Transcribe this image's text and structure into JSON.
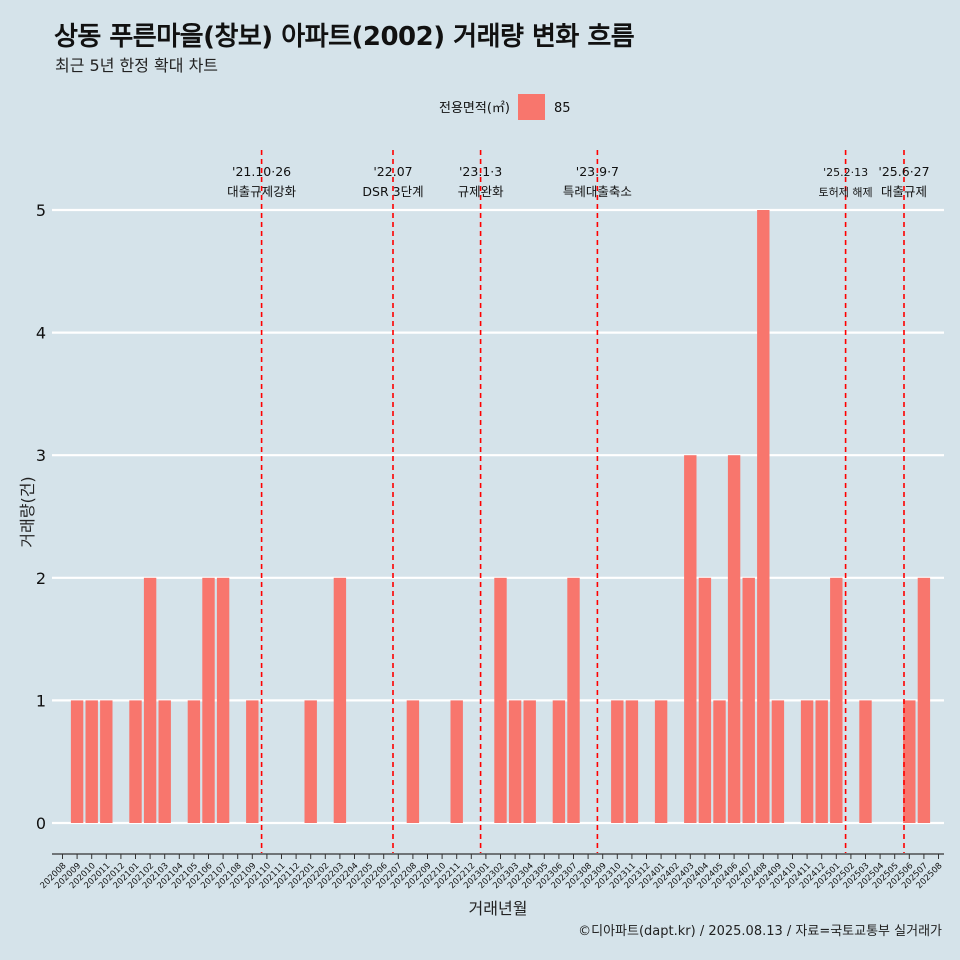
{
  "header": {
    "title": "상동 푸른마을(창보) 아파트(2002) 거래량 변화 흐름",
    "subtitle": "최근 5년 한정 확대 차트"
  },
  "footer": {
    "source": "©디아파트(dapt.kr) / 2025.08.13 / 자료=국토교통부 실거래가"
  },
  "colors": {
    "background": "#d5e3ea",
    "bar": "#f8766d",
    "event_line": "#ff0000",
    "grid": "#ffffff"
  },
  "chart_data": {
    "type": "bar",
    "title": "상동 푸른마을(창보) 아파트(2002) 거래량 변화 흐름",
    "xlabel": "거래년월",
    "ylabel": "거래량(건)",
    "ylim": [
      0,
      5
    ],
    "yticks": [
      0,
      1,
      2,
      3,
      4,
      5
    ],
    "grid": "horizontal",
    "legend": {
      "title": "전용면적(㎡)",
      "placement": "top"
    },
    "categories": [
      "202008",
      "202009",
      "202010",
      "202011",
      "202012",
      "202101",
      "202102",
      "202103",
      "202104",
      "202105",
      "202106",
      "202107",
      "202108",
      "202109",
      "202110",
      "202111",
      "202112",
      "202201",
      "202202",
      "202203",
      "202204",
      "202205",
      "202206",
      "202207",
      "202208",
      "202209",
      "202210",
      "202211",
      "202212",
      "202301",
      "202302",
      "202303",
      "202304",
      "202305",
      "202306",
      "202307",
      "202308",
      "202309",
      "202310",
      "202311",
      "202312",
      "202401",
      "202402",
      "202403",
      "202404",
      "202405",
      "202406",
      "202407",
      "202408",
      "202409",
      "202410",
      "202411",
      "202412",
      "202501",
      "202502",
      "202503",
      "202504",
      "202505",
      "202506",
      "202507",
      "202508"
    ],
    "series": [
      {
        "name": "85",
        "values": [
          0,
          1,
          1,
          1,
          0,
          1,
          2,
          1,
          0,
          1,
          2,
          2,
          0,
          1,
          0,
          0,
          0,
          1,
          0,
          2,
          0,
          0,
          0,
          0,
          1,
          0,
          0,
          1,
          0,
          0,
          2,
          1,
          1,
          0,
          1,
          2,
          0,
          0,
          1,
          1,
          0,
          1,
          0,
          3,
          2,
          1,
          3,
          2,
          5,
          1,
          0,
          1,
          1,
          2,
          0,
          1,
          0,
          0,
          1,
          2,
          0
        ]
      }
    ],
    "events": [
      {
        "date": "'21.10·26",
        "label": "대출규제강화",
        "category": "202110"
      },
      {
        "date": "'22.07",
        "label": "DSR 3단계",
        "category": "202207"
      },
      {
        "date": "'23.1·3",
        "label": "규제완화",
        "category": "202301"
      },
      {
        "date": "'23.9·7",
        "label": "특례대출축소",
        "category": "202309"
      },
      {
        "date": "'25.2·13",
        "label": "토허제 해제",
        "category": "202502"
      },
      {
        "date": "'25.6·27",
        "label": "대출규제",
        "category": "202506"
      }
    ]
  }
}
